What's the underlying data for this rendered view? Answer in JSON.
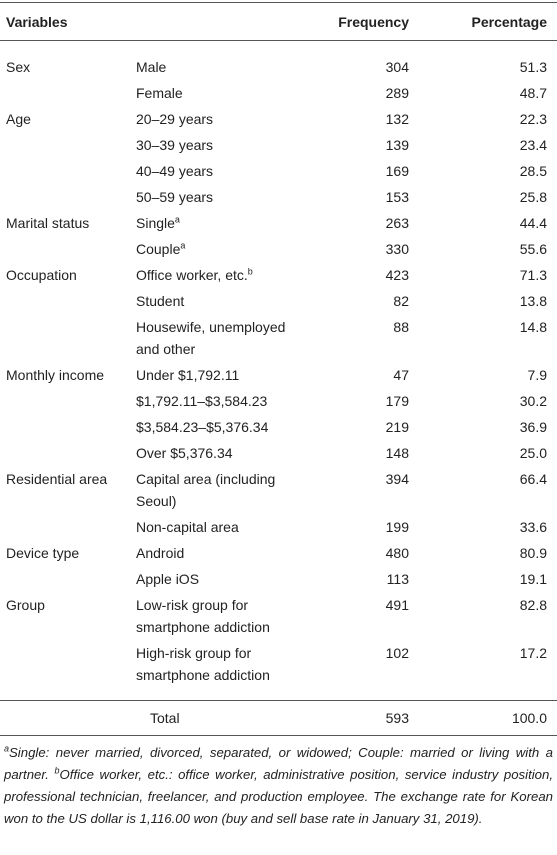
{
  "header": {
    "variables": "Variables",
    "frequency": "Frequency",
    "percentage": "Percentage"
  },
  "groups": [
    {
      "name": "Sex",
      "rows": [
        {
          "item": "Male",
          "frequency": 304,
          "percentage": "51.3"
        },
        {
          "item": "Female",
          "frequency": 289,
          "percentage": "48.7"
        }
      ]
    },
    {
      "name": "Age",
      "rows": [
        {
          "item": "20–29 years",
          "frequency": 132,
          "percentage": "22.3"
        },
        {
          "item": "30–39 years",
          "frequency": 139,
          "percentage": "23.4"
        },
        {
          "item": "40–49 years",
          "frequency": 169,
          "percentage": "28.5"
        },
        {
          "item": "50–59 years",
          "frequency": 153,
          "percentage": "25.8"
        }
      ]
    },
    {
      "name": "Marital status",
      "rows": [
        {
          "item": "Single",
          "note": "a",
          "frequency": 263,
          "percentage": "44.4"
        },
        {
          "item": "Couple",
          "note": "a",
          "frequency": 330,
          "percentage": "55.6"
        }
      ]
    },
    {
      "name": "Occupation",
      "rows": [
        {
          "item": "Office worker, etc.",
          "note": "b",
          "frequency": 423,
          "percentage": "71.3"
        },
        {
          "item": "Student",
          "frequency": 82,
          "percentage": "13.8"
        },
        {
          "item": "Housewife, unemployed and other",
          "frequency": 88,
          "percentage": "14.8"
        }
      ]
    },
    {
      "name": "Monthly income",
      "rows": [
        {
          "item": "Under $1,792.11",
          "frequency": 47,
          "percentage": "7.9"
        },
        {
          "item": "$1,792.11–$3,584.23",
          "frequency": 179,
          "percentage": "30.2"
        },
        {
          "item": "$3,584.23–$5,376.34",
          "frequency": 219,
          "percentage": "36.9"
        },
        {
          "item": "Over $5,376.34",
          "frequency": 148,
          "percentage": "25.0"
        }
      ]
    },
    {
      "name": "Residential area",
      "rows": [
        {
          "item": "Capital area (including Seoul)",
          "frequency": 394,
          "percentage": "66.4"
        },
        {
          "item": "Non-capital area",
          "frequency": 199,
          "percentage": "33.6"
        }
      ]
    },
    {
      "name": "Device type",
      "rows": [
        {
          "item": "Android",
          "frequency": 480,
          "percentage": "80.9"
        },
        {
          "item": "Apple iOS",
          "frequency": 113,
          "percentage": "19.1"
        }
      ]
    },
    {
      "name": "Group",
      "rows": [
        {
          "item": "Low-risk group for smartphone addiction",
          "frequency": 491,
          "percentage": "82.8"
        },
        {
          "item": "High-risk group for smartphone addiction",
          "frequency": 102,
          "percentage": "17.2"
        }
      ]
    }
  ],
  "total": {
    "label": "Total",
    "frequency": 593,
    "percentage": "100.0"
  },
  "footnote": [
    {
      "mark": "a",
      "text": "Single: never married, divorced, separated, or widowed; Couple: married or living with a partner."
    },
    {
      "mark": "b",
      "text": "Office worker, etc.: office worker, administrative position, service industry position, professional technician, freelancer, and production employee. The exchange rate for Korean won to the US dollar is 1,116.00 won (buy and sell base rate in January 31, 2019)."
    }
  ]
}
